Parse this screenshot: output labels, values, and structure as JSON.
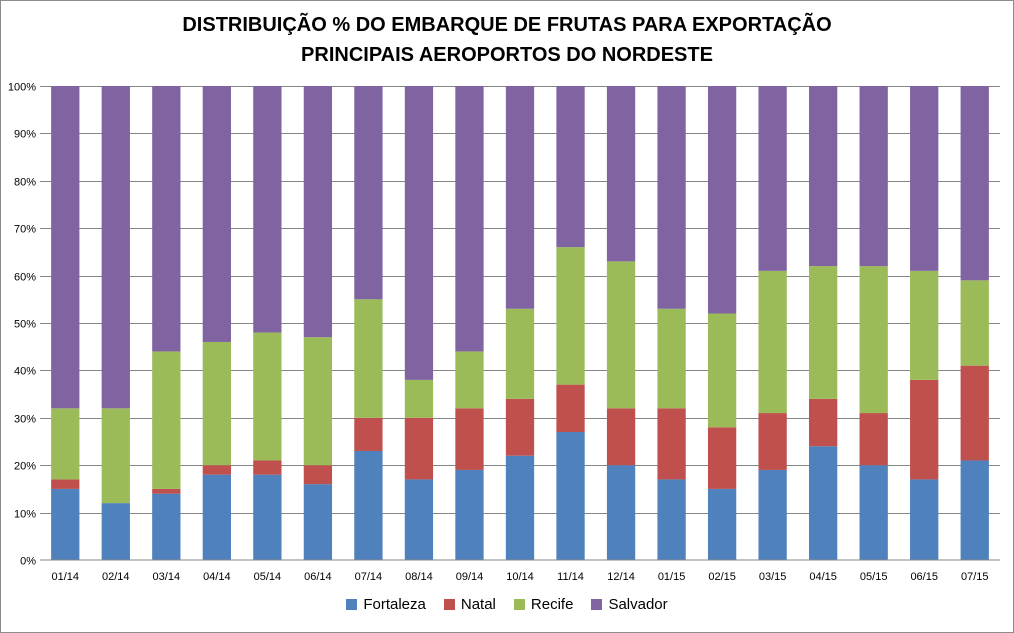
{
  "chart_data": {
    "type": "bar",
    "stacked": true,
    "title_line1": "DISTRIBUIÇÃO % DO EMBARQUE DE FRUTAS PARA EXPORTAÇÃO",
    "title_line2": "PRINCIPAIS AEROPORTOS DO NORDESTE",
    "xlabel": "",
    "ylabel": "",
    "ylim": [
      0,
      100
    ],
    "y_ticks": [
      "0%",
      "10%",
      "20%",
      "30%",
      "40%",
      "50%",
      "60%",
      "70%",
      "80%",
      "90%",
      "100%"
    ],
    "grid": true,
    "legend_position": "bottom",
    "categories": [
      "01/14",
      "02/14",
      "03/14",
      "04/14",
      "05/14",
      "06/14",
      "07/14",
      "08/14",
      "09/14",
      "10/14",
      "11/14",
      "12/14",
      "01/15",
      "02/15",
      "03/15",
      "04/15",
      "05/15",
      "06/15",
      "07/15"
    ],
    "series": [
      {
        "name": "Fortaleza",
        "color": "#4f81bd",
        "values": [
          15,
          12,
          14,
          18,
          18,
          16,
          23,
          17,
          19,
          22,
          27,
          20,
          17,
          15,
          19,
          24,
          20,
          17,
          21
        ]
      },
      {
        "name": "Natal",
        "color": "#c0504d",
        "values": [
          2,
          0,
          1,
          2,
          3,
          4,
          7,
          13,
          13,
          12,
          10,
          12,
          15,
          13,
          12,
          10,
          11,
          21,
          20
        ]
      },
      {
        "name": "Recife",
        "color": "#9bbb59",
        "values": [
          15,
          20,
          29,
          26,
          27,
          27,
          25,
          8,
          12,
          19,
          29,
          31,
          21,
          24,
          30,
          28,
          31,
          23,
          18
        ]
      },
      {
        "name": "Salvador",
        "color": "#8064a2",
        "values": [
          68,
          68,
          56,
          54,
          52,
          53,
          45,
          62,
          56,
          47,
          34,
          37,
          47,
          48,
          39,
          38,
          38,
          39,
          41
        ]
      }
    ]
  }
}
